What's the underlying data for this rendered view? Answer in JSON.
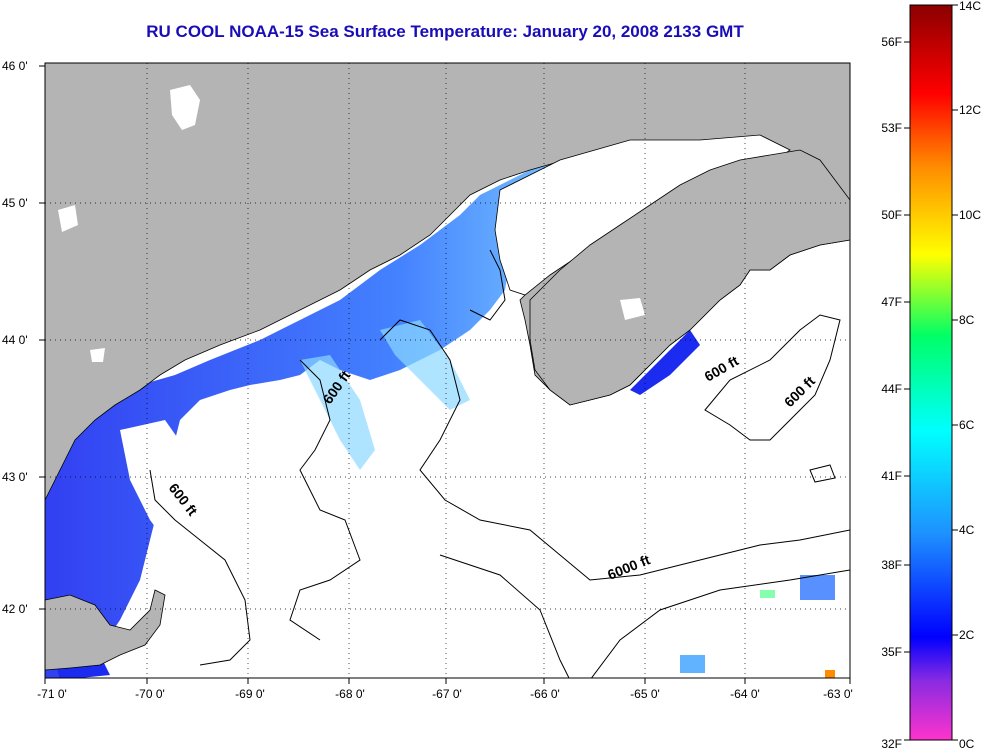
{
  "title": "RU COOL  NOAA-15  Sea Surface Temperature:  January 20, 2008 2133 GMT",
  "map": {
    "lon_ticks": [
      "-71 0'",
      "-70 0'",
      "-69 0'",
      "-68 0'",
      "-67 0'",
      "-66 0'",
      "-65 0'",
      "-64 0'",
      "-63 0'"
    ],
    "lat_ticks": [
      "46 0'",
      "45 0'",
      "44 0'",
      "43 0'",
      "42 0'"
    ],
    "contour_labels": [
      "600 ft",
      "600 ft",
      "600 ft",
      "600 ft",
      "6000 ft"
    ],
    "colors": {
      "land": "#b4b4b4",
      "water_nodata": "#ffffff",
      "title": "#1a0db8"
    }
  },
  "colorbar": {
    "fahrenheit_labels": [
      "56F",
      "53F",
      "50F",
      "47F",
      "44F",
      "41F",
      "38F",
      "35F",
      "32F"
    ],
    "celsius_labels": [
      "14C",
      "12C",
      "10C",
      "8C",
      "6C",
      "4C",
      "2C",
      "0C"
    ],
    "range_c": [
      0,
      14
    ]
  }
}
